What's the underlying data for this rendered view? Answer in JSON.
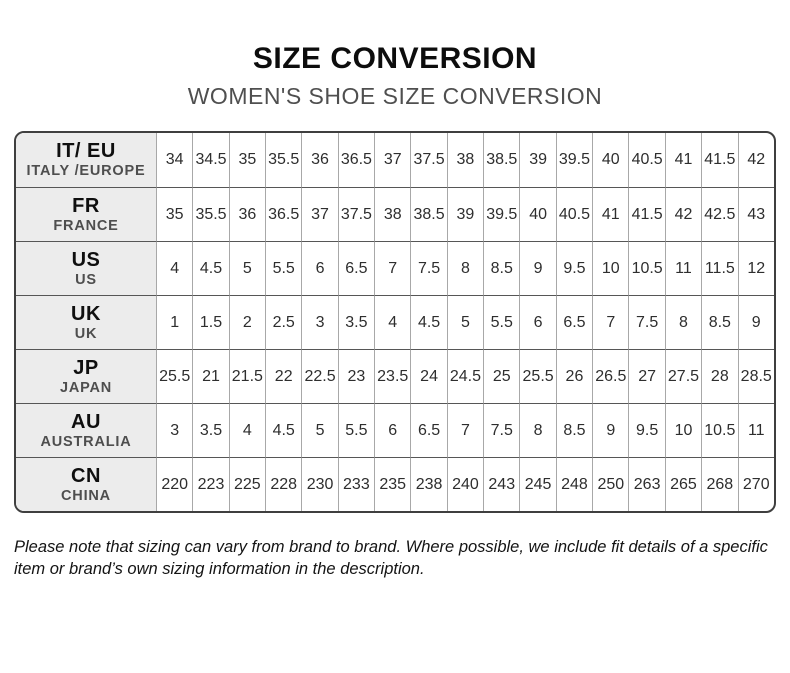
{
  "title": "SIZE CONVERSION",
  "subtitle": "WOMEN'S SHOE SIZE CONVERSION",
  "table": {
    "rows": [
      {
        "id": "it-eu",
        "code": "IT/ EU",
        "region": "ITALY /EUROPE",
        "values": [
          "34",
          "34.5",
          "35",
          "35.5",
          "36",
          "36.5",
          "37",
          "37.5",
          "38",
          "38.5",
          "39",
          "39.5",
          "40",
          "40.5",
          "41",
          "41.5",
          "42"
        ]
      },
      {
        "id": "fr",
        "code": "FR",
        "region": "FRANCE",
        "values": [
          "35",
          "35.5",
          "36",
          "36.5",
          "37",
          "37.5",
          "38",
          "38.5",
          "39",
          "39.5",
          "40",
          "40.5",
          "41",
          "41.5",
          "42",
          "42.5",
          "43"
        ]
      },
      {
        "id": "us",
        "code": "US",
        "region": "US",
        "values": [
          "4",
          "4.5",
          "5",
          "5.5",
          "6",
          "6.5",
          "7",
          "7.5",
          "8",
          "8.5",
          "9",
          "9.5",
          "10",
          "10.5",
          "11",
          "11.5",
          "12"
        ]
      },
      {
        "id": "uk",
        "code": "UK",
        "region": "UK",
        "values": [
          "1",
          "1.5",
          "2",
          "2.5",
          "3",
          "3.5",
          "4",
          "4.5",
          "5",
          "5.5",
          "6",
          "6.5",
          "7",
          "7.5",
          "8",
          "8.5",
          "9"
        ]
      },
      {
        "id": "jp",
        "code": "JP",
        "region": "JAPAN",
        "values": [
          "25.5",
          "21",
          "21.5",
          "22",
          "22.5",
          "23",
          "23.5",
          "24",
          "24.5",
          "25",
          "25.5",
          "26",
          "26.5",
          "27",
          "27.5",
          "28",
          "28.5"
        ]
      },
      {
        "id": "au",
        "code": "AU",
        "region": "AUSTRALIA",
        "values": [
          "3",
          "3.5",
          "4",
          "4.5",
          "5",
          "5.5",
          "6",
          "6.5",
          "7",
          "7.5",
          "8",
          "8.5",
          "9",
          "9.5",
          "10",
          "10.5",
          "11"
        ]
      },
      {
        "id": "cn",
        "code": "CN",
        "region": "CHINA",
        "values": [
          "220",
          "223",
          "225",
          "228",
          "230",
          "233",
          "235",
          "238",
          "240",
          "243",
          "245",
          "248",
          "250",
          "263",
          "265",
          "268",
          "270"
        ]
      }
    ]
  },
  "footer": {
    "note": "Please note that sizing can vary from brand to brand. Where possible, we include fit details of a specific item or brand’s own sizing information in the description."
  },
  "colors": {
    "header_cell_bg": "#ececec",
    "outer_border": "#3f3f3f",
    "row_divider": "#565656",
    "column_divider": "#a8a8a8",
    "subtitle_text": "#4f4f4f"
  }
}
